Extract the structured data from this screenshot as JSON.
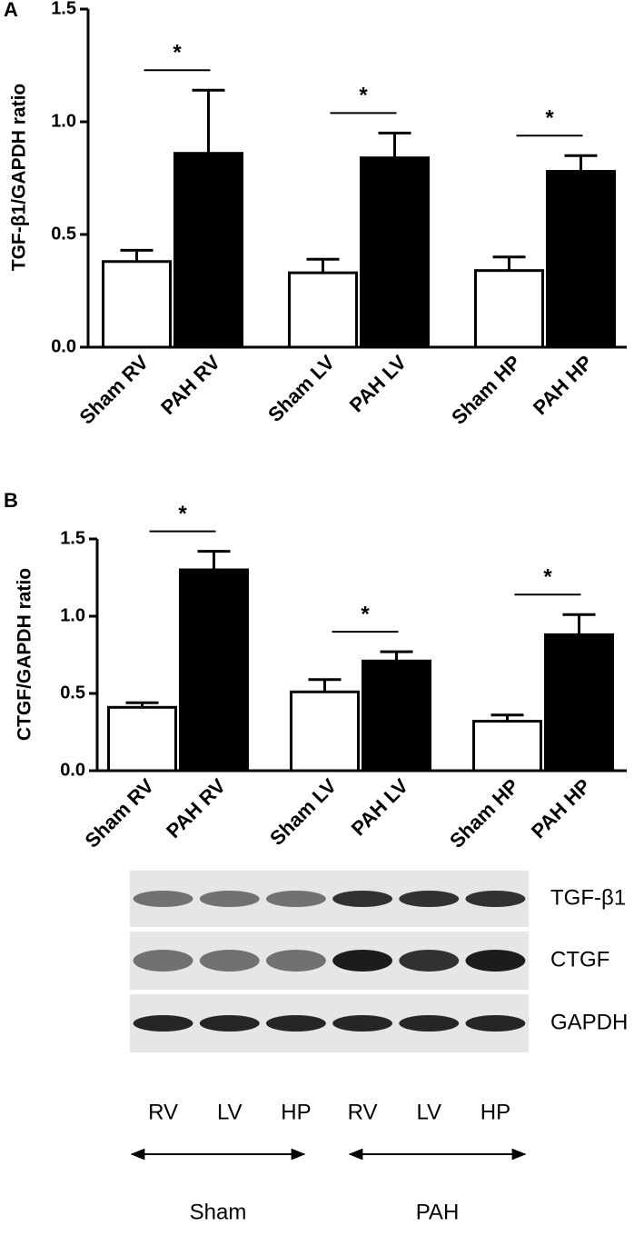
{
  "chart_data": [
    {
      "type": "bar",
      "panel": "A",
      "ylabel": "TGF-β1/GAPDH ratio",
      "categories": [
        "Sham RV",
        "PAH RV",
        "Sham LV",
        "PAH LV",
        "Sham HP",
        "PAH HP"
      ],
      "values": [
        0.38,
        0.86,
        0.33,
        0.84,
        0.34,
        0.78
      ],
      "errors": [
        0.05,
        0.28,
        0.06,
        0.11,
        0.06,
        0.07
      ],
      "colors": [
        "#ffffff",
        "#000000",
        "#ffffff",
        "#000000",
        "#ffffff",
        "#000000"
      ],
      "ylim": [
        0,
        1.5
      ],
      "yticks": [
        {
          "value": 0,
          "label": "0.0"
        },
        {
          "value": 0.5,
          "label": "0.5"
        },
        {
          "value": 1,
          "label": "1.0"
        },
        {
          "value": 1.5,
          "label": "1.5"
        }
      ],
      "significance": [
        "*",
        "*",
        "*"
      ]
    },
    {
      "type": "bar",
      "panel": "B",
      "ylabel": "CTGF/GAPDH ratio",
      "categories": [
        "Sham RV",
        "PAH RV",
        "Sham LV",
        "PAH LV",
        "Sham HP",
        "PAH HP"
      ],
      "values": [
        0.41,
        1.3,
        0.51,
        0.71,
        0.32,
        0.88
      ],
      "errors": [
        0.03,
        0.12,
        0.08,
        0.06,
        0.04,
        0.13
      ],
      "colors": [
        "#ffffff",
        "#000000",
        "#ffffff",
        "#000000",
        "#ffffff",
        "#000000"
      ],
      "ylim": [
        0,
        1.5
      ],
      "yticks": [
        {
          "value": 0,
          "label": "0.0"
        },
        {
          "value": 0.5,
          "label": "0.5"
        },
        {
          "value": 1,
          "label": "1.0"
        },
        {
          "value": 1.5,
          "label": "1.5"
        }
      ],
      "significance": [
        "*",
        "*",
        "*"
      ]
    }
  ],
  "blot": {
    "rows": [
      "TGF-β1",
      "CTGF",
      "GAPDH"
    ],
    "lanes": [
      "RV",
      "LV",
      "HP",
      "RV",
      "LV",
      "HP"
    ],
    "groups": [
      "Sham",
      "PAH"
    ]
  }
}
